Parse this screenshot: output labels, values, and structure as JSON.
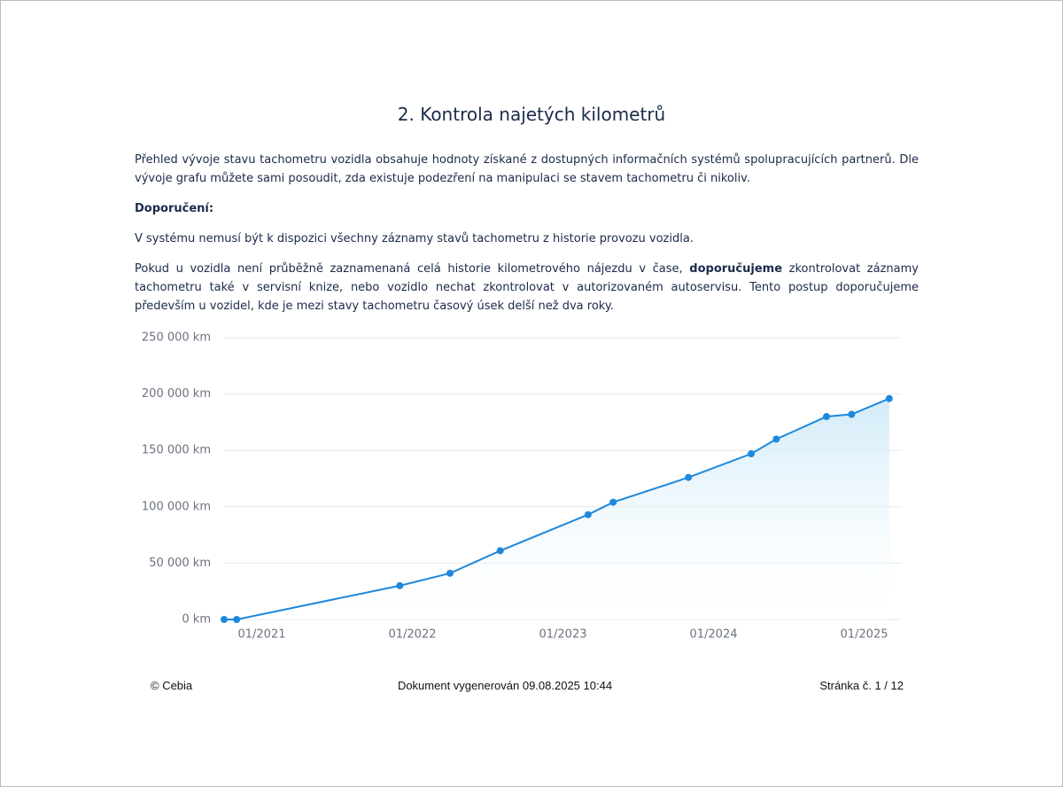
{
  "title": "2. Kontrola najetých kilometrů",
  "paragraphs": [
    [
      "Přehled vývoje stavu tachometru vozidla obsahuje hodnoty získané z dostupných informačních systémů spolupracujících partnerů. Dle vývoje grafu můžete sami posoudit, zda existuje podezření na manipulaci se stavem tachometru či nikoliv."
    ],
    [
      "Doporučení:"
    ],
    [
      "V systému nemusí být k dispozici všechny záznamy stavů tachometru z historie provozu vozidla."
    ],
    [
      "Pokud u vozidla není průběžně zaznamenaná celá historie kilometrového nájezdu v čase, ",
      "doporučujeme",
      " zkontrolovat záznamy tachometru také v servisní knize, nebo vozidlo nechat zkontrolovat v autorizovaném autoservisu. Tento postup doporučujeme především u vozidel, kde je mezi stavy tachometru časový úsek delší než dva roky."
    ]
  ],
  "chart_data": {
    "type": "line",
    "x": [
      "2020-10",
      "2020-11",
      "2021-12",
      "2022-04",
      "2022-08",
      "2023-03",
      "2023-05",
      "2023-11",
      "2024-04",
      "2024-06",
      "2024-10",
      "2024-12",
      "2025-03"
    ],
    "values": [
      0,
      0,
      30000,
      41000,
      61000,
      93000,
      104000,
      126000,
      147000,
      160000,
      180000,
      182000,
      196000
    ],
    "color": "#1e88dc",
    "xlim": [
      "2020-10",
      "2025-04"
    ],
    "xticks": [
      {
        "value": "2021-01",
        "label": "01/2021"
      },
      {
        "value": "2022-01",
        "label": "01/2022"
      },
      {
        "value": "2023-01",
        "label": "01/2023"
      },
      {
        "value": "2024-01",
        "label": "01/2024"
      },
      {
        "value": "2025-01",
        "label": "01/2025"
      }
    ],
    "ylim": [
      0,
      250000
    ],
    "yticks": [
      {
        "value": 0,
        "label": "0 km"
      },
      {
        "value": 50000,
        "label": "50 000 km"
      },
      {
        "value": 100000,
        "label": "100 000 km"
      },
      {
        "value": 150000,
        "label": "150 000 km"
      },
      {
        "value": 200000,
        "label": "200 000 km"
      },
      {
        "value": 250000,
        "label": "250 000 km"
      }
    ],
    "grid": true
  },
  "footer": {
    "left": "© Cebia",
    "center": "Dokument vygenerován 09.08.2025 10:44",
    "right": "Stránka č. 1 / 12"
  }
}
